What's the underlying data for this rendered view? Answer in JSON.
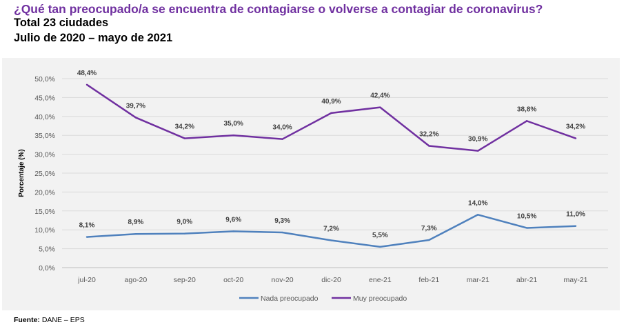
{
  "title": "¿Qué tan preocupado/a se encuentra de contagiarse o volverse a contagiar de coronavirus?",
  "subtitle1": "Total 23 ciudades",
  "subtitle2": "Julio de 2020 – mayo de 2021",
  "source_label": "Fuente:",
  "source_value": "DANE – EPS",
  "chart_data": {
    "type": "line",
    "categories": [
      "jul-20",
      "ago-20",
      "sep-20",
      "oct-20",
      "nov-20",
      "dic-20",
      "ene-21",
      "feb-21",
      "mar-21",
      "abr-21",
      "may-21"
    ],
    "ylabel": "Porcentaje (%)",
    "xlabel": "",
    "ylim": [
      0,
      50
    ],
    "yticks": [
      "0,0%",
      "5,0%",
      "10,0%",
      "15,0%",
      "20,0%",
      "25,0%",
      "30,0%",
      "35,0%",
      "40,0%",
      "45,0%",
      "50,0%"
    ],
    "grid": true,
    "legend": "bottom",
    "series": [
      {
        "name": "Nada preocupado",
        "color": "#4f81bd",
        "values": [
          8.1,
          8.9,
          9.0,
          9.6,
          9.3,
          7.2,
          5.5,
          7.3,
          14.0,
          10.5,
          11.0
        ],
        "labels": [
          "8,1%",
          "8,9%",
          "9,0%",
          "9,6%",
          "9,3%",
          "7,2%",
          "5,5%",
          "7,3%",
          "14,0%",
          "10,5%",
          "11,0%"
        ]
      },
      {
        "name": "Muy preocupado",
        "color": "#7030a0",
        "values": [
          48.4,
          39.7,
          34.2,
          35.0,
          34.0,
          40.9,
          42.4,
          32.2,
          30.9,
          38.8,
          34.2
        ],
        "labels": [
          "48,4%",
          "39,7%",
          "34,2%",
          "35,0%",
          "34,0%",
          "40,9%",
          "42,4%",
          "32,2%",
          "30,9%",
          "38,8%",
          "34,2%"
        ]
      }
    ]
  }
}
